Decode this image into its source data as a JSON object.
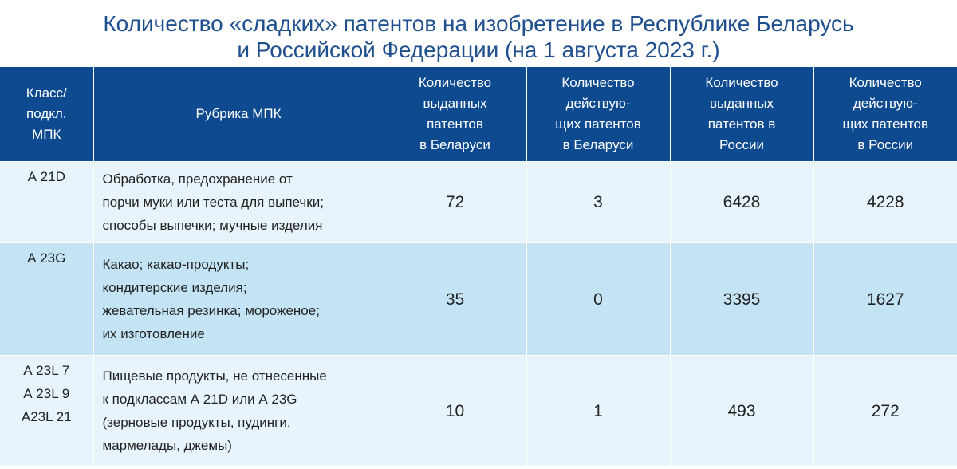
{
  "title": {
    "line1": "Количество «сладких» патентов на изобретение в Республике Беларусь",
    "line2": "и Российской Федерации (на 1 августа 2023 г.)"
  },
  "chart_data": {
    "type": "table",
    "columns": [
      [
        "Класс/",
        "подкл.",
        "МПК"
      ],
      [
        "Рубрика МПК"
      ],
      [
        "Количество",
        "выданных",
        "патентов",
        "в Беларуси"
      ],
      [
        "Количество",
        "действую-",
        "щих патентов",
        "в Беларуси"
      ],
      [
        "Количество",
        "выданных",
        "патентов в",
        "России"
      ],
      [
        "Количество",
        "действую-",
        "щих патентов",
        "в России"
      ]
    ],
    "rows": [
      {
        "class": [
          "А 21D"
        ],
        "rubric": [
          "Обработка, предохранение от",
          "порчи муки или теста для выпечки;",
          "способы выпечки; мучные изделия"
        ],
        "values": [
          "72",
          "3",
          "6428",
          "4228"
        ]
      },
      {
        "class": [
          "А 23G"
        ],
        "rubric": [
          "Какао; какао-продукты;",
          "кондитерские изделия;",
          "жевательная резинка; мороженое;",
          "их изготовление"
        ],
        "values": [
          "35",
          "0",
          "3395",
          "1627"
        ]
      },
      {
        "class": [
          "А 23L 7",
          "А 23L 9",
          "А23L 21"
        ],
        "rubric": [
          "Пищевые продукты, не отнесенные",
          "к подклассам А 21D или А 23G",
          "(зерновые продукты, пудинги,",
          "мармелады, джемы)"
        ],
        "values": [
          "10",
          "1",
          "493",
          "272"
        ]
      }
    ]
  },
  "colors": {
    "title": "#1f4f8f",
    "header_bg": "#0d4a90",
    "row_light": "#e8f4fb",
    "row_dark": "#c4e4f6"
  }
}
